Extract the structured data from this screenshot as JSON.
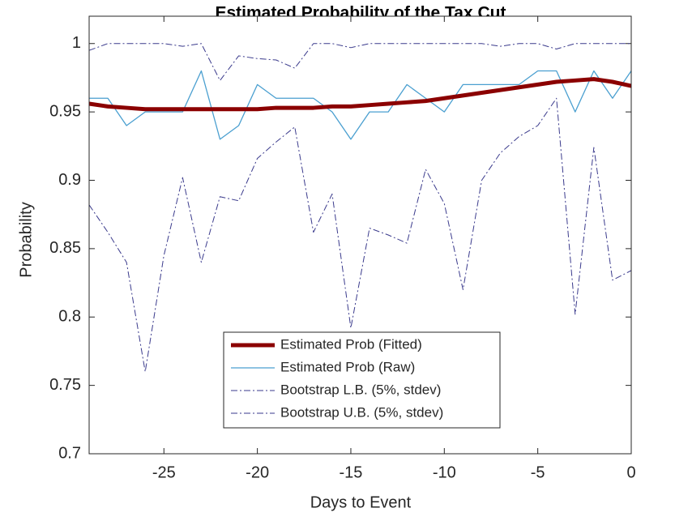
{
  "chart_data": {
    "type": "line",
    "title": "Estimated Probability of the Tax Cut",
    "x_label": "Days to Event",
    "y_label": "Probability",
    "x": [
      -29,
      -28,
      -27,
      -26,
      -25,
      -24,
      -23,
      -22,
      -21,
      -20,
      -19,
      -18,
      -17,
      -16,
      -15,
      -14,
      -13,
      -12,
      -11,
      -10,
      -9,
      -8,
      -7,
      -6,
      -5,
      -4,
      -3,
      -2,
      -1,
      0
    ],
    "series": [
      {
        "name": "Estimated Prob (Fitted)",
        "color": "#8b0000",
        "line_style": "solid",
        "line_width": 5,
        "values": [
          0.956,
          0.954,
          0.953,
          0.952,
          0.952,
          0.952,
          0.952,
          0.952,
          0.952,
          0.952,
          0.953,
          0.953,
          0.953,
          0.954,
          0.954,
          0.955,
          0.956,
          0.957,
          0.958,
          0.96,
          0.962,
          0.964,
          0.966,
          0.968,
          0.97,
          0.972,
          0.973,
          0.974,
          0.972,
          0.969
        ]
      },
      {
        "name": "Estimated Prob (Raw)",
        "color": "#4a9fd0",
        "line_style": "solid",
        "line_width": 1.3,
        "values": [
          0.96,
          0.96,
          0.94,
          0.95,
          0.95,
          0.95,
          0.98,
          0.93,
          0.94,
          0.97,
          0.96,
          0.96,
          0.96,
          0.95,
          0.93,
          0.95,
          0.95,
          0.97,
          0.96,
          0.95,
          0.97,
          0.97,
          0.97,
          0.97,
          0.98,
          0.98,
          0.95,
          0.98,
          0.96,
          0.98
        ]
      },
      {
        "name": "Bootstrap L.B. (5%, stdev)",
        "color": "#3a3a8c",
        "line_style": "dashdot",
        "line_width": 1,
        "values": [
          0.882,
          0.862,
          0.84,
          0.76,
          0.845,
          0.902,
          0.84,
          0.888,
          0.885,
          0.916,
          0.928,
          0.939,
          0.862,
          0.89,
          0.792,
          0.865,
          0.86,
          0.854,
          0.908,
          0.883,
          0.82,
          0.9,
          0.92,
          0.932,
          0.94,
          0.96,
          0.802,
          0.924,
          0.827,
          0.834
        ]
      },
      {
        "name": "Bootstrap U.B. (5%, stdev)",
        "color": "#3a3a8c",
        "line_style": "dashdot",
        "line_width": 1,
        "values": [
          0.995,
          1,
          1,
          1,
          1,
          0.998,
          1,
          0.973,
          0.991,
          0.989,
          0.988,
          0.982,
          1,
          1,
          0.997,
          1,
          1,
          1,
          1,
          1,
          1,
          1,
          0.998,
          1,
          1,
          0.996,
          1,
          1,
          1,
          1
        ]
      }
    ],
    "xlim": [
      -29,
      0
    ],
    "xticks": [
      -25,
      -20,
      -15,
      -10,
      -5,
      0
    ],
    "ylim": [
      0.7,
      1.02
    ],
    "yticks": [
      0.7,
      0.75,
      0.8,
      0.85,
      0.9,
      0.95,
      1
    ],
    "grid": false,
    "legend": "south"
  }
}
